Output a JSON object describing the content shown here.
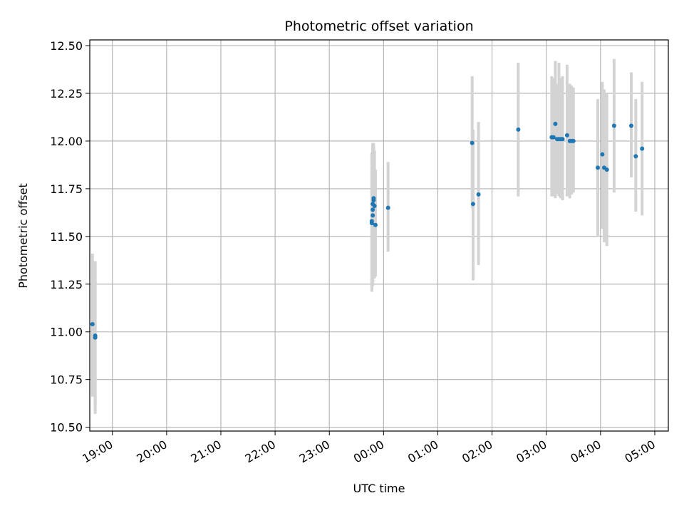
{
  "chart_data": {
    "type": "scatter",
    "title": "Photometric offset variation",
    "xlabel": "UTC time",
    "ylabel": "Photometric offset",
    "x_unit": "UTC time (hours)",
    "xlim": [
      "18:35",
      "05:15"
    ],
    "ylim": [
      10.48,
      12.53
    ],
    "x_ticks": [
      "19:00",
      "20:00",
      "21:00",
      "22:00",
      "23:00",
      "00:00",
      "01:00",
      "02:00",
      "03:00",
      "04:00",
      "05:00"
    ],
    "y_ticks": [
      10.5,
      10.75,
      11.0,
      11.25,
      11.5,
      11.75,
      12.0,
      12.25,
      12.5
    ],
    "y_tick_labels": [
      "10.50",
      "10.75",
      "11.00",
      "11.25",
      "11.50",
      "11.75",
      "12.00",
      "12.25",
      "12.50"
    ],
    "grid": true,
    "point_color": "#1f77b4",
    "errorbar_color": "#d3d3d3",
    "points": [
      {
        "time": "18:38",
        "y": 11.04,
        "ylow": 10.66,
        "yhigh": 11.41
      },
      {
        "time": "18:41",
        "y": 10.97,
        "ylow": 10.57,
        "yhigh": 11.37
      },
      {
        "time": "18:41",
        "y": 10.98,
        "ylow": 10.6,
        "yhigh": 11.36
      },
      {
        "time": "23:47",
        "y": 11.57,
        "ylow": 11.21,
        "yhigh": 11.94
      },
      {
        "time": "23:47",
        "y": 11.58,
        "ylow": 11.23,
        "yhigh": 11.92
      },
      {
        "time": "23:48",
        "y": 11.61,
        "ylow": 11.24,
        "yhigh": 11.98
      },
      {
        "time": "23:48",
        "y": 11.64,
        "ylow": 11.29,
        "yhigh": 11.99
      },
      {
        "time": "23:48",
        "y": 11.67,
        "ylow": 11.3,
        "yhigh": 11.96
      },
      {
        "time": "23:49",
        "y": 11.69,
        "ylow": 11.33,
        "yhigh": 11.97
      },
      {
        "time": "23:49",
        "y": 11.7,
        "ylow": 11.35,
        "yhigh": 11.99
      },
      {
        "time": "23:50",
        "y": 11.66,
        "ylow": 11.28,
        "yhigh": 11.95
      },
      {
        "time": "23:51",
        "y": 11.56,
        "ylow": 11.29,
        "yhigh": 11.85
      },
      {
        "time": "00:05",
        "y": 11.65,
        "ylow": 11.42,
        "yhigh": 11.89
      },
      {
        "time": "01:38",
        "y": 11.99,
        "ylow": 11.65,
        "yhigh": 12.34
      },
      {
        "time": "01:39",
        "y": 11.67,
        "ylow": 11.27,
        "yhigh": 12.06
      },
      {
        "time": "01:45",
        "y": 11.72,
        "ylow": 11.35,
        "yhigh": 12.1
      },
      {
        "time": "02:29",
        "y": 12.06,
        "ylow": 11.71,
        "yhigh": 12.41
      },
      {
        "time": "03:06",
        "y": 12.02,
        "ylow": 11.71,
        "yhigh": 12.34
      },
      {
        "time": "03:08",
        "y": 12.02,
        "ylow": 11.71,
        "yhigh": 12.33
      },
      {
        "time": "03:10",
        "y": 12.09,
        "ylow": 11.7,
        "yhigh": 12.42
      },
      {
        "time": "03:12",
        "y": 12.01,
        "ylow": 11.72,
        "yhigh": 12.3
      },
      {
        "time": "03:14",
        "y": 12.01,
        "ylow": 11.71,
        "yhigh": 12.41
      },
      {
        "time": "03:16",
        "y": 12.01,
        "ylow": 11.7,
        "yhigh": 12.33
      },
      {
        "time": "03:18",
        "y": 12.01,
        "ylow": 11.69,
        "yhigh": 12.34
      },
      {
        "time": "03:23",
        "y": 12.03,
        "ylow": 11.71,
        "yhigh": 12.4
      },
      {
        "time": "03:26",
        "y": 12.0,
        "ylow": 11.7,
        "yhigh": 12.3
      },
      {
        "time": "03:28",
        "y": 12.0,
        "ylow": 11.72,
        "yhigh": 12.29
      },
      {
        "time": "03:30",
        "y": 12.0,
        "ylow": 11.73,
        "yhigh": 12.28
      },
      {
        "time": "03:57",
        "y": 11.86,
        "ylow": 11.5,
        "yhigh": 12.22
      },
      {
        "time": "04:02",
        "y": 11.93,
        "ylow": 11.54,
        "yhigh": 12.31
      },
      {
        "time": "04:04",
        "y": 11.86,
        "ylow": 11.47,
        "yhigh": 12.27
      },
      {
        "time": "04:07",
        "y": 11.85,
        "ylow": 11.45,
        "yhigh": 12.25
      },
      {
        "time": "04:15",
        "y": 12.08,
        "ylow": 11.73,
        "yhigh": 12.43
      },
      {
        "time": "04:34",
        "y": 12.08,
        "ylow": 11.81,
        "yhigh": 12.36
      },
      {
        "time": "04:39",
        "y": 11.92,
        "ylow": 11.63,
        "yhigh": 12.22
      },
      {
        "time": "04:46",
        "y": 11.96,
        "ylow": 11.61,
        "yhigh": 12.31
      }
    ]
  }
}
